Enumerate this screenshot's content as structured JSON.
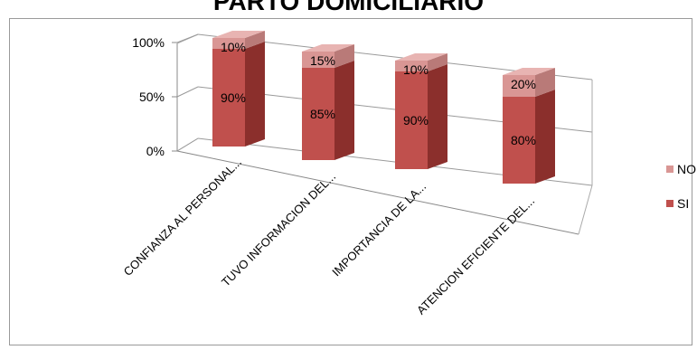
{
  "chart_data": {
    "type": "bar",
    "title": "PARTO DOMICILIARIO",
    "stacked": true,
    "three_d": true,
    "categories": [
      "CONFIANZA AL PERSONAL...",
      "TUVO INFORMACION DEL...",
      "IMPORTANCIA DE LA...",
      "ATENCION EFICIENTE DEL..."
    ],
    "series": [
      {
        "name": "SI",
        "values": [
          90,
          85,
          90,
          80
        ],
        "labels": [
          "90%",
          "85%",
          "90%",
          "80%"
        ],
        "color": "#c0504d"
      },
      {
        "name": "NO",
        "values": [
          10,
          15,
          10,
          20
        ],
        "labels": [
          "10%",
          "15%",
          "10%",
          "20%"
        ],
        "color": "#d99694"
      }
    ],
    "y_ticks": [
      "0%",
      "50%",
      "100%"
    ],
    "ylim": [
      0,
      100
    ],
    "grid": true,
    "legend_position": "right"
  }
}
